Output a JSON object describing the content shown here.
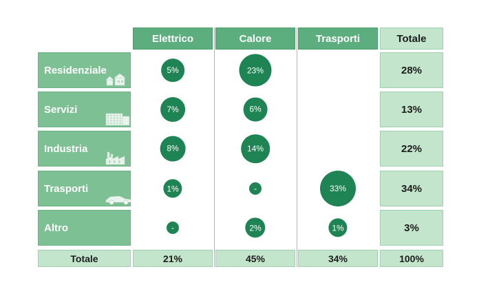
{
  "columns": [
    {
      "key": "elettrico",
      "label": "Elettrico"
    },
    {
      "key": "calore",
      "label": "Calore"
    },
    {
      "key": "trasporti",
      "label": "Trasporti"
    }
  ],
  "total_header": "Totale",
  "rows": [
    {
      "label": "Residenziale",
      "icon": "houses-icon",
      "values": [
        "5%",
        "23%",
        ""
      ],
      "pct": [
        5,
        23,
        null
      ],
      "total": "28%"
    },
    {
      "label": "Servizi",
      "icon": "office-building-icon",
      "values": [
        "7%",
        "6%",
        ""
      ],
      "pct": [
        7,
        6,
        null
      ],
      "total": "13%"
    },
    {
      "label": "Industria",
      "icon": "factory-icon",
      "values": [
        "8%",
        "14%",
        ""
      ],
      "pct": [
        8,
        14,
        null
      ],
      "total": "22%"
    },
    {
      "label": "Trasporti",
      "icon": "car-icon",
      "values": [
        "1%",
        "-",
        "33%"
      ],
      "pct": [
        1,
        0,
        33
      ],
      "total": "34%"
    },
    {
      "label": "Altro",
      "icon": "",
      "values": [
        "-",
        "2%",
        "1%"
      ],
      "pct": [
        0,
        2,
        1
      ],
      "total": "3%"
    }
  ],
  "footer": {
    "label": "Totale",
    "values": [
      "21%",
      "45%",
      "34%"
    ],
    "total": "100%"
  },
  "colors": {
    "header": "#5cae7e",
    "row_header": "#7cc093",
    "total": "#c3e5cc",
    "bubble": "#1f8454"
  }
}
